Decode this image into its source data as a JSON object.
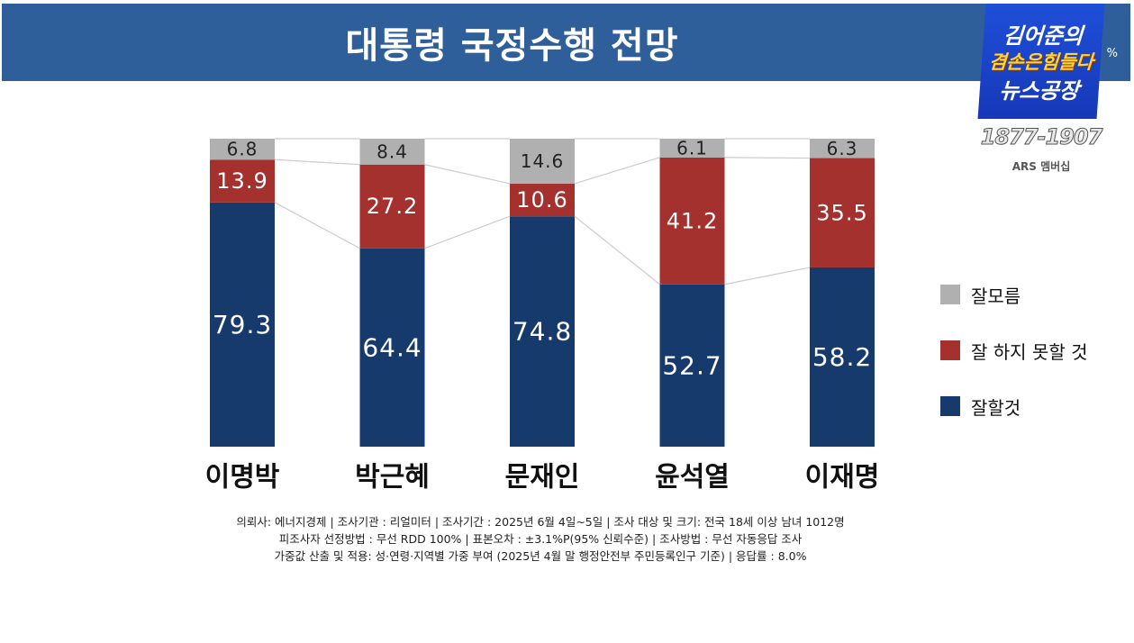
{
  "title": "대통령 국정수행 전망",
  "unit": "%",
  "logo": {
    "line1": "김어준의",
    "line2": "겸손은힘들다",
    "line3": "뉴스공장",
    "phone": "1877-1907",
    "sub": "ARS 멤버십"
  },
  "colors": {
    "dont_know": "#b0b0b0",
    "bad": "#a5312e",
    "good": "#173a6c"
  },
  "chart_data": {
    "type": "bar",
    "stacked": true,
    "categories": [
      "이명박",
      "박근혜",
      "문재인",
      "윤석열",
      "이재명"
    ],
    "series": [
      {
        "name": "잘할것",
        "values": [
          79.3,
          64.4,
          74.8,
          52.7,
          58.2
        ]
      },
      {
        "name": "잘 하지 못할 것",
        "values": [
          13.9,
          27.2,
          10.6,
          41.2,
          35.5
        ]
      },
      {
        "name": "잘모름",
        "values": [
          6.8,
          8.4,
          14.6,
          6.1,
          6.3
        ]
      }
    ],
    "ylim": [
      0,
      100
    ],
    "legend_position": "right"
  },
  "legend": [
    {
      "label": "잘모름"
    },
    {
      "label": "잘 하지 못할 것"
    },
    {
      "label": "잘할것"
    }
  ],
  "footnote": {
    "line1": "의뢰사: 에너지경제 | 조사기관 : 리얼미터  |  조사기간 : 2025년 6월 4일~5일 | 조사 대상 및 크기: 전국 18세 이상 남녀 1012명",
    "line2": "피조사자 선정방법 : 무선 RDD 100% | 표본오차 : ±3.1%P(95% 신뢰수준) | 조사방법 : 무선 자동응답 조사",
    "line3": "가중값 산출 및 적용: 성·연령·지역별 가중 부여 (2025년 4월 말 행정안전부 주민등록인구 기준) | 응답률 : 8.0%"
  }
}
